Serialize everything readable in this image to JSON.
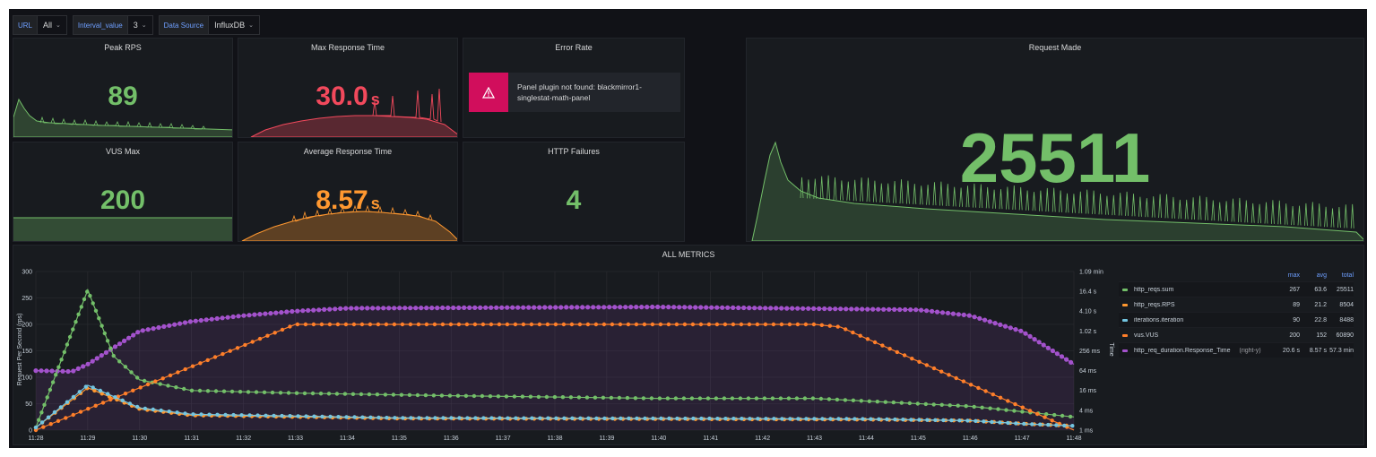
{
  "variables": [
    {
      "label": "URL",
      "value": "All"
    },
    {
      "label": "Interval_value",
      "value": "3"
    },
    {
      "label": "Data Source",
      "value": "InfluxDB"
    }
  ],
  "icons": {
    "dropdown": "chevron-down-icon",
    "warning": "warning-triangle-icon"
  },
  "colors": {
    "green": "#73bf69",
    "red": "#f2495c",
    "orange": "#ff9830",
    "purple": "#a352cc",
    "cyan": "#73c5e0",
    "error": "#d10e5c"
  },
  "panels": {
    "peak_rps": {
      "title": "Peak RPS",
      "value": "89",
      "unit": ""
    },
    "max_response_time": {
      "title": "Max Response Time",
      "value": "30.0",
      "unit": "s"
    },
    "error_rate": {
      "title": "Error Rate",
      "error_line1": "Panel plugin not found: blackmirror1-",
      "error_line2": "singlestat-math-panel"
    },
    "request_made": {
      "title": "Request Made",
      "value": "25511"
    },
    "vus_max": {
      "title": "VUS Max",
      "value": "200"
    },
    "avg_response_time": {
      "title": "Average Response Time",
      "value": "8.57",
      "unit": "s"
    },
    "http_failures": {
      "title": "HTTP Failures",
      "value": "4"
    }
  },
  "all_metrics": {
    "title": "ALL METRICS",
    "legend_headers": {
      "max": "max",
      "avg": "avg",
      "total": "total"
    },
    "legend": [
      {
        "name": "http_reqs.sum",
        "color": "#73bf69",
        "axis": "",
        "max": "267",
        "avg": "63.6",
        "total": "25511"
      },
      {
        "name": "http_reqs.RPS",
        "color": "#ff9830",
        "axis": "",
        "max": "89",
        "avg": "21.2",
        "total": "8504"
      },
      {
        "name": "iterations.iteration",
        "color": "#73c5e0",
        "axis": "",
        "max": "90",
        "avg": "22.8",
        "total": "8488"
      },
      {
        "name": "vus.VUS",
        "color": "#ff7f2a",
        "axis": "",
        "max": "200",
        "avg": "152",
        "total": "60890"
      },
      {
        "name": "http_req_duration.Response_Time",
        "color": "#a352cc",
        "axis": "(right-y)",
        "max": "20.6 s",
        "avg": "8.57 s",
        "total": "57.3 min"
      }
    ]
  },
  "chart_data": {
    "type": "line",
    "title": "ALL METRICS",
    "xlabel": "",
    "ylabel": "Request Per Second (rps)",
    "y2label": "Time",
    "ylim": [
      0,
      300
    ],
    "yticks": [
      "0",
      "50",
      "100",
      "150",
      "200",
      "250",
      "300"
    ],
    "y2ticks": [
      "1 ms",
      "4 ms",
      "16 ms",
      "64 ms",
      "256 ms",
      "1.02 s",
      "4.10 s",
      "16.4 s",
      "1.09 min"
    ],
    "x_ticks": [
      "11:28",
      "11:29",
      "11:30",
      "11:31",
      "11:32",
      "11:33",
      "11:34",
      "11:35",
      "11:36",
      "11:37",
      "11:38",
      "11:39",
      "11:40",
      "11:41",
      "11:42",
      "11:43",
      "11:44",
      "11:45",
      "11:46",
      "11:47",
      "11:48"
    ],
    "series": [
      {
        "name": "http_reqs.sum",
        "x": [
          "11:28",
          "11:29",
          "11:29.5",
          "11:30",
          "11:31",
          "11:33",
          "11:36",
          "11:40",
          "11:43",
          "11:44",
          "11:46",
          "11:47",
          "11:48"
        ],
        "values": [
          5,
          265,
          140,
          95,
          75,
          70,
          65,
          60,
          60,
          55,
          45,
          35,
          25
        ]
      },
      {
        "name": "http_reqs.RPS",
        "x": [
          "11:28",
          "11:29",
          "11:30",
          "11:31",
          "11:35",
          "11:40",
          "11:44",
          "11:46",
          "11:47",
          "11:48"
        ],
        "values": [
          5,
          80,
          40,
          28,
          22,
          21,
          20,
          18,
          12,
          8
        ]
      },
      {
        "name": "iterations.iteration",
        "x": [
          "11:28",
          "11:29",
          "11:30",
          "11:31",
          "11:35",
          "11:40",
          "11:44",
          "11:46",
          "11:47",
          "11:48"
        ],
        "values": [
          5,
          85,
          42,
          30,
          23,
          22,
          21,
          18,
          12,
          8
        ]
      },
      {
        "name": "vus.VUS",
        "x": [
          "11:28",
          "11:33",
          "11:43",
          "11:43.5",
          "11:48"
        ],
        "values": [
          0,
          200,
          200,
          195,
          0
        ]
      },
      {
        "name": "http_req_duration.Response_Time",
        "x": [
          "11:28",
          "11:28.7",
          "11:29",
          "11:30",
          "11:31",
          "11:32",
          "11:33",
          "11:34",
          "11:40",
          "11:45",
          "11:46",
          "11:47",
          "11:48"
        ],
        "values": [
          "64 ms",
          "60 ms",
          "100 ms",
          "1.02 s",
          "2 s",
          "3 s",
          "4.1 s",
          "5 s",
          "5.5 s",
          "4.5 s",
          "3 s",
          "1 s",
          "100 ms"
        ]
      }
    ],
    "legend_position": "right",
    "grid": true
  }
}
